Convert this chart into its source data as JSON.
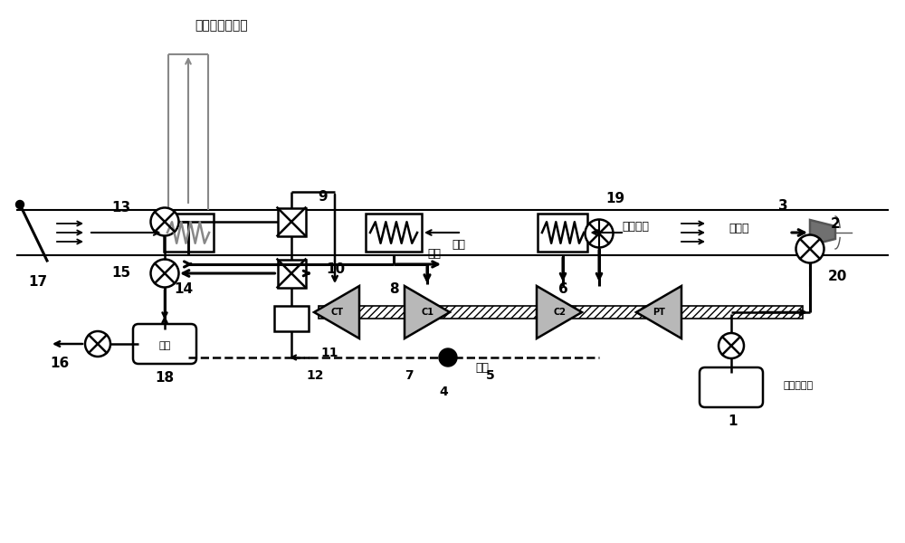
{
  "bg_color": "#ffffff",
  "line_color": "#000000",
  "gray_color": "#888888",
  "labels": {
    "cooling_agent": "冷却设备载冷剂",
    "cold_duct": "冷风道",
    "return_air": "回风",
    "cold_path": "冷路",
    "hot_path": "热路",
    "ram_air": "冲压空气",
    "engine_bleed": "发动机引气",
    "discharge": "排出"
  },
  "font": "SimHei"
}
